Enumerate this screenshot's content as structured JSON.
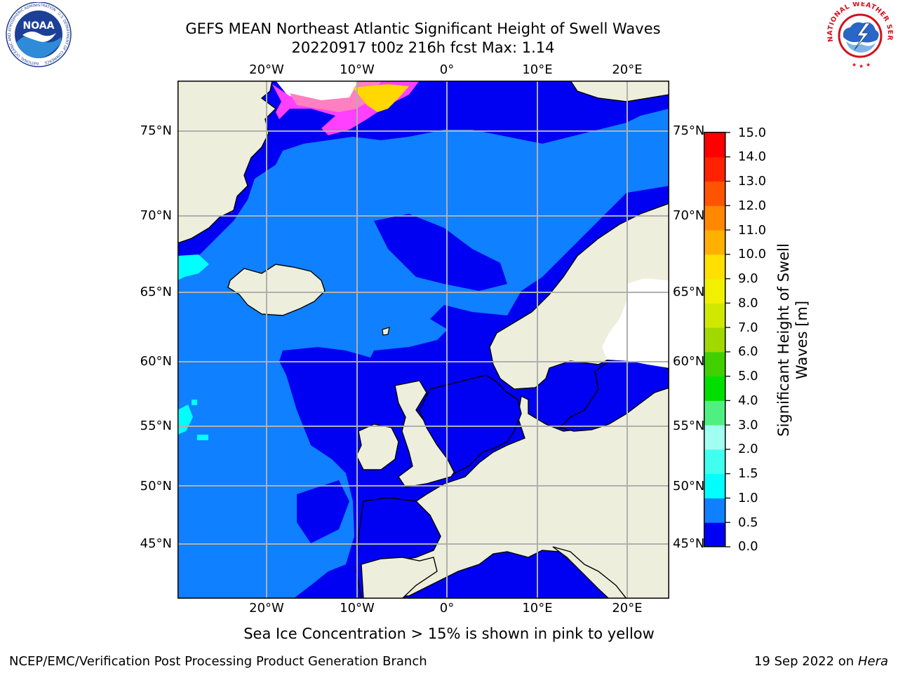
{
  "header": {
    "title_line1": "GEFS MEAN Northeast Atlantic Significant Height of Swell Waves",
    "title_line2": "20220917 t00z 216h fcst   Max: 1.14"
  },
  "logos": {
    "noaa": {
      "name": "NOAA",
      "ring_text": "NATIONAL OCEANIC AND ATMOSPHERIC ADMINISTRATION · U.S. DEPARTMENT OF COMMERCE"
    },
    "nws": {
      "ring_text": "NATIONAL WEATHER SERVICE"
    }
  },
  "map": {
    "lon_ticks": [
      "20°W",
      "10°W",
      "0°",
      "10°E",
      "20°E"
    ],
    "lat_ticks": [
      "75°N",
      "70°N",
      "65°N",
      "60°N",
      "55°N",
      "50°N",
      "45°N"
    ],
    "grid": true,
    "colors": {
      "land": "#eeeedd",
      "ocean_low": "#0000f2",
      "ocean_mid": "#0f80ff",
      "gridline": "#b0b0b0",
      "unmasked": "#ffffff"
    }
  },
  "colorbar": {
    "label": "Significant Height of Swell Waves [m]",
    "ticks": [
      "0.0",
      "0.5",
      "1.0",
      "1.5",
      "2.0",
      "3.0",
      "4.0",
      "5.0",
      "6.0",
      "7.0",
      "8.0",
      "9.0",
      "10.0",
      "11.0",
      "12.0",
      "13.0",
      "14.0",
      "15.0"
    ],
    "colors": [
      "#0000f2",
      "#0f80ff",
      "#00ffff",
      "#40ffee",
      "#a0fff0",
      "#50f080",
      "#00e000",
      "#40d000",
      "#a0d800",
      "#d0e800",
      "#f0f000",
      "#ffe000",
      "#ffb000",
      "#ff8800",
      "#ff5500",
      "#ff2200",
      "#ff0000"
    ]
  },
  "footer": {
    "note": "Sea Ice Concentration > 15% is shown in pink to yellow",
    "left": "NCEP/EMC/Verification Post Processing Product Generation Branch",
    "date": "19 Sep 2022 on",
    "machine": "Hera"
  }
}
